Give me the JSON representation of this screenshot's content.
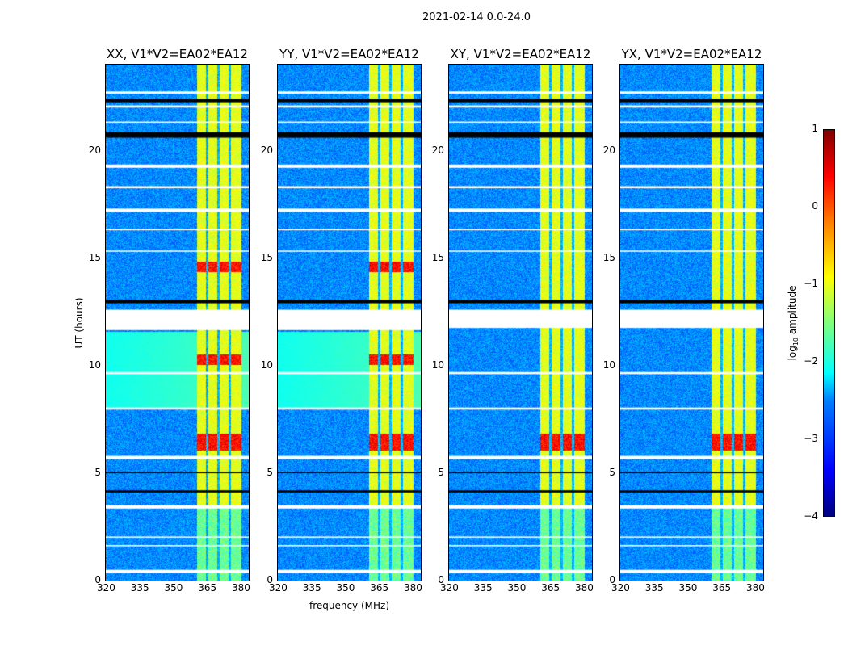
{
  "chart_data": {
    "type": "heatmap",
    "title": "2021-02-14 0.0-24.0",
    "xlabel": "frequency (MHz)",
    "ylabel": "UT (hours)",
    "xlim": [
      320,
      383.6
    ],
    "ylim": [
      0,
      24
    ],
    "xticks": [
      "320",
      "335",
      "350",
      "365",
      "380"
    ],
    "xtick_values": [
      320,
      335,
      350,
      365,
      380
    ],
    "yticks": [
      "0",
      "5",
      "10",
      "15",
      "20"
    ],
    "ytick_values": [
      0,
      5,
      10,
      15,
      20
    ],
    "panels": [
      {
        "title": "XX, V1*V2=EA02*EA12",
        "teal_block": true
      },
      {
        "title": "YY, V1*V2=EA02*EA12",
        "teal_block": true
      },
      {
        "title": "XY, V1*V2=EA02*EA12",
        "teal_block": false
      },
      {
        "title": "YX, V1*V2=EA02*EA12",
        "teal_block": false
      }
    ],
    "band_MHz": [
      360.3,
      380.2
    ],
    "band_dark_channels_MHz": [
      365,
      370,
      375
    ],
    "white_gaps_hours": [
      [
        22.65,
        22.75
      ],
      [
        22.0,
        22.1
      ],
      [
        19.2,
        19.35
      ],
      [
        18.25,
        18.35
      ],
      [
        17.15,
        17.3
      ],
      [
        11.65,
        12.6
      ],
      [
        9.6,
        9.7
      ],
      [
        7.95,
        8.05
      ],
      [
        5.65,
        5.8
      ],
      [
        3.35,
        3.5
      ],
      [
        0.35,
        0.5
      ],
      [
        2.0,
        2.05
      ],
      [
        1.6,
        1.65
      ],
      [
        21.3,
        21.35
      ],
      [
        15.3,
        15.35
      ],
      [
        16.3,
        16.35
      ]
    ],
    "black_gaps_hours": [
      [
        22.25,
        22.4
      ],
      [
        20.6,
        20.85
      ],
      [
        12.9,
        13.05
      ],
      [
        4.1,
        4.2
      ],
      [
        5.0,
        5.05
      ]
    ],
    "hot_rows_hours": [
      6.3,
      6.6,
      14.6,
      10.3
    ],
    "colorbar": {
      "label": "log",
      "label_sub": "10",
      "label_tail": " amplitude",
      "range": [
        -4,
        1
      ],
      "ticks": [
        "1",
        "0",
        "−1",
        "−2",
        "−3",
        "−4"
      ],
      "tick_values": [
        1,
        0,
        -1,
        -2,
        -3,
        -4
      ],
      "colormap": "jet"
    }
  }
}
